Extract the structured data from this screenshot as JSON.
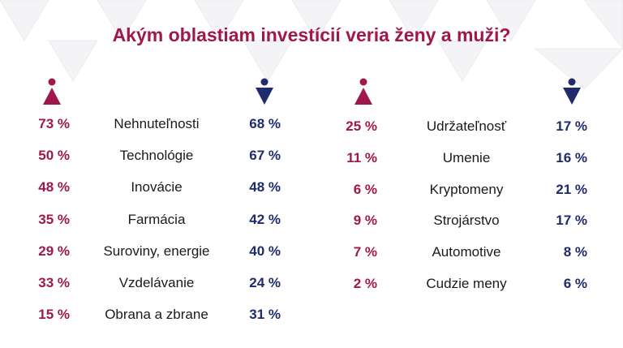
{
  "chart_data": {
    "type": "table",
    "title": "Akým oblastiam investícií veria ženy a muži?",
    "legend": [
      {
        "name": "ženy",
        "icon": "female-icon",
        "color": "#a0174b"
      },
      {
        "name": "muži",
        "icon": "male-icon",
        "color": "#1f2b6b"
      }
    ],
    "tables": [
      {
        "rows": [
          {
            "category": "Nehnuteľnosti",
            "women": "73 %",
            "men": "68 %"
          },
          {
            "category": "Technológie",
            "women": "50 %",
            "men": "67 %"
          },
          {
            "category": "Inovácie",
            "women": "48 %",
            "men": "48 %"
          },
          {
            "category": "Farmácia",
            "women": "35 %",
            "men": "42 %"
          },
          {
            "category": "Suroviny, energie",
            "women": "29 %",
            "men": "40 %"
          },
          {
            "category": "Vzdelávanie",
            "women": "33 %",
            "men": "24 %"
          },
          {
            "category": "Obrana a zbrane",
            "women": "15 %",
            "men": "31 %"
          }
        ]
      },
      {
        "rows": [
          {
            "category": "Udržateľnosť",
            "women": "25 %",
            "men": "17 %"
          },
          {
            "category": "Umenie",
            "women": "11 %",
            "men": "16 %"
          },
          {
            "category": "Kryptomeny",
            "women": "6 %",
            "men": "21 %"
          },
          {
            "category": "Strojárstvo",
            "women": "9 %",
            "men": "17 %"
          },
          {
            "category": "Automotive",
            "women": "7 %",
            "men": "8 %"
          },
          {
            "category": "Cudzie meny",
            "women": "2 %",
            "men": "6 %"
          }
        ]
      }
    ]
  }
}
